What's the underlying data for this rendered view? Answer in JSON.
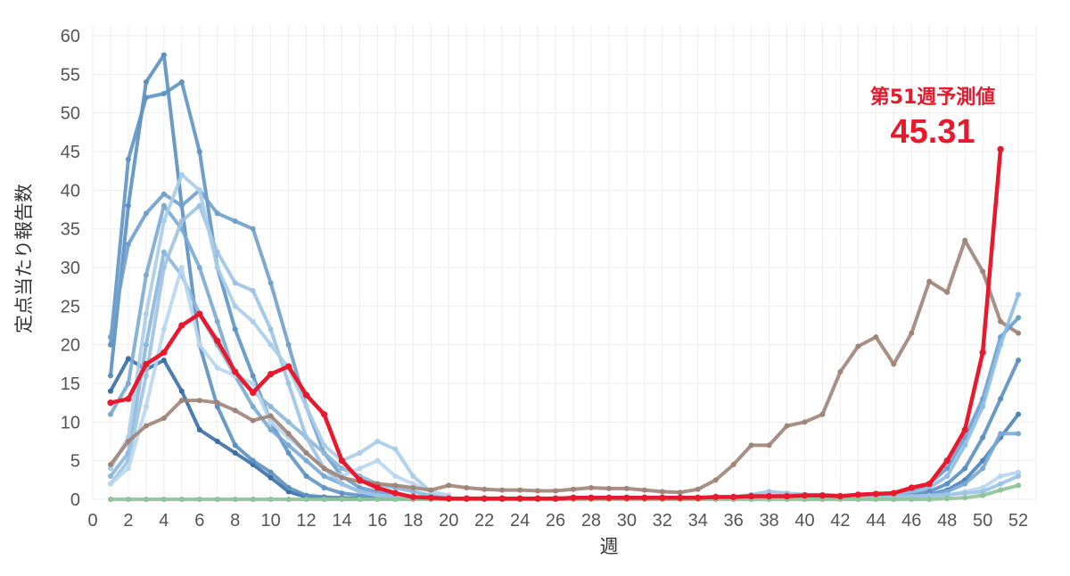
{
  "chart_data": {
    "type": "line",
    "title": "",
    "xlabel": "週",
    "ylabel": "定点当たり報告数",
    "xlim": [
      0,
      53
    ],
    "ylim": [
      0,
      60
    ],
    "xticks": [
      "0",
      "2",
      "4",
      "6",
      "8",
      "10",
      "12",
      "14",
      "16",
      "18",
      "20",
      "22",
      "24",
      "26",
      "28",
      "30",
      "32",
      "34",
      "36",
      "38",
      "40",
      "42",
      "44",
      "46",
      "48",
      "50",
      "52"
    ],
    "yticks": [
      "0",
      "5",
      "10",
      "15",
      "20",
      "25",
      "30",
      "35",
      "40",
      "45",
      "50",
      "55",
      "60"
    ],
    "grid": true,
    "legend": "none",
    "annotation": {
      "label": "第51週予測値",
      "value": "45.31",
      "color": "#e8192c",
      "x": 51,
      "y": 45.31
    },
    "series": [
      {
        "color": "#3a6fa5",
        "x": [
          1,
          2,
          3,
          4,
          5,
          6,
          7,
          8,
          9,
          10,
          11,
          12,
          13,
          14,
          15,
          16,
          17,
          18,
          19,
          20
        ],
        "y": [
          14,
          18.2,
          16.8,
          18,
          14,
          9,
          7.5,
          6,
          4.5,
          2.8,
          1,
          0.3,
          0.2,
          0.1,
          0.1,
          0.1,
          0.1,
          0.1,
          0.1,
          0.1
        ]
      },
      {
        "color": "#5b8fc0",
        "x": [
          1,
          2,
          3,
          4,
          5,
          6,
          7,
          8,
          9,
          10,
          11,
          12,
          13,
          14,
          15,
          16,
          17,
          18,
          19,
          20
        ],
        "y": [
          16,
          38,
          54,
          57.5,
          38,
          20,
          12,
          7,
          5,
          3.5,
          1.5,
          0.5,
          0.3,
          0.2,
          0.1,
          0.1,
          0.1,
          0.1,
          0.1,
          0.1
        ]
      },
      {
        "color": "#5e93c4",
        "x": [
          1,
          2,
          3,
          4,
          5,
          6,
          7,
          8,
          9,
          10,
          11,
          12,
          13,
          14,
          15,
          16,
          17,
          18,
          19,
          20
        ],
        "y": [
          20,
          44,
          52,
          52.5,
          54,
          45,
          30,
          22,
          16,
          10,
          6,
          3,
          1.5,
          0.8,
          0.5,
          0.3,
          0.2,
          0.1,
          0.1,
          0.1
        ]
      },
      {
        "color": "#6fa0cc",
        "x": [
          1,
          2,
          3,
          4,
          5,
          6,
          7,
          8,
          9,
          10,
          11,
          12,
          13,
          14,
          15,
          16,
          17,
          18,
          19,
          20
        ],
        "y": [
          21,
          33,
          37,
          39.5,
          38,
          40,
          37,
          36,
          35,
          28,
          20,
          12,
          6,
          3,
          1.5,
          1,
          0.5,
          0.3,
          0.2,
          0.1
        ]
      },
      {
        "color": "#7aaad3",
        "x": [
          1,
          2,
          3,
          4,
          5,
          6,
          7,
          8,
          9,
          10,
          11,
          12,
          13,
          14,
          15,
          16,
          17,
          18,
          19,
          20
        ],
        "y": [
          11,
          15,
          29,
          38,
          35,
          30,
          23,
          16,
          12,
          9,
          7,
          5,
          3,
          2,
          1,
          0.8,
          0.5,
          0.3,
          0.2,
          0.1
        ]
      },
      {
        "color": "#8cb7dc",
        "x": [
          1,
          2,
          3,
          4,
          5,
          6,
          7,
          8,
          9,
          10,
          11,
          12,
          13,
          14,
          15,
          16,
          17,
          18,
          19,
          20
        ],
        "y": [
          3,
          6,
          20,
          32,
          29,
          24,
          20,
          16,
          14,
          12,
          10,
          8,
          6,
          4,
          3,
          2,
          1.5,
          1,
          0.5,
          0.3
        ]
      },
      {
        "color": "#9cc3e4",
        "x": [
          1,
          2,
          3,
          4,
          5,
          6,
          7,
          8,
          9,
          10,
          11,
          12,
          13,
          14,
          15,
          16,
          17,
          18,
          19,
          20
        ],
        "y": [
          2,
          5,
          16,
          30,
          36,
          38,
          32,
          28,
          27,
          22,
          15,
          8,
          4,
          2,
          1,
          0.5,
          0.3,
          0.2,
          0.1,
          0.1
        ]
      },
      {
        "color": "#aacdea",
        "x": [
          1,
          2,
          3,
          4,
          5,
          6,
          7,
          8,
          9,
          10,
          11,
          12,
          13,
          14,
          15,
          16,
          17,
          18,
          19,
          20
        ],
        "y": [
          4,
          8,
          24,
          36,
          42,
          40,
          30,
          25,
          23,
          20,
          17,
          12,
          7,
          5,
          6,
          7.5,
          6.5,
          3,
          1,
          0.5
        ]
      },
      {
        "color": "#b8d6ef",
        "x": [
          1,
          2,
          3,
          4,
          5,
          6,
          7,
          8,
          9,
          10,
          11,
          12,
          13,
          14,
          15,
          16,
          17,
          18,
          19,
          20
        ],
        "y": [
          2,
          4,
          12,
          22,
          30,
          20,
          17,
          16,
          15,
          10,
          8,
          6,
          4,
          3,
          4,
          5,
          3,
          2,
          1,
          0.5
        ]
      },
      {
        "color": "#a08478",
        "x": [
          1,
          2,
          3,
          4,
          5,
          6,
          7,
          8,
          9,
          10,
          11,
          12,
          13,
          14,
          15,
          16,
          17,
          18,
          19,
          20,
          21,
          22,
          23,
          24,
          25,
          26,
          27,
          28,
          29,
          30,
          31,
          32,
          33,
          34,
          35,
          36,
          37,
          38,
          39,
          40,
          41,
          42,
          43,
          44,
          45,
          46,
          47,
          48,
          49,
          50,
          51,
          52
        ],
        "y": [
          4.5,
          7.5,
          9.5,
          10.5,
          12.8,
          12.8,
          12.5,
          11.5,
          10.2,
          10.8,
          8.5,
          6,
          4,
          2.8,
          2.3,
          2,
          1.8,
          1.5,
          1.2,
          1.8,
          1.5,
          1.3,
          1.2,
          1.2,
          1.1,
          1.1,
          1.3,
          1.5,
          1.4,
          1.4,
          1.2,
          1,
          0.9,
          1.3,
          2.5,
          4.5,
          7,
          7,
          9.5,
          10,
          11,
          16.5,
          19.8,
          21,
          17.5,
          21.5,
          28.2,
          26.8,
          33.5,
          29.5,
          23,
          21.5
        ]
      },
      {
        "color": "#6a9fd0",
        "x": [
          40,
          41,
          42,
          43,
          44,
          45,
          46,
          47,
          48,
          49,
          50,
          51,
          52
        ],
        "y": [
          0.2,
          0.2,
          0.3,
          0.3,
          0.4,
          0.5,
          1,
          2,
          4,
          8,
          13,
          21,
          23.5
        ]
      },
      {
        "color": "#8cbde5",
        "x": [
          40,
          41,
          42,
          43,
          44,
          45,
          46,
          47,
          48,
          49,
          50,
          51,
          52
        ],
        "y": [
          0.1,
          0.1,
          0.2,
          0.2,
          0.3,
          0.4,
          0.8,
          1.5,
          3,
          7,
          12,
          20,
          26.5
        ]
      },
      {
        "color": "#5b8fc0",
        "x": [
          40,
          41,
          42,
          43,
          44,
          45,
          46,
          47,
          48,
          49,
          50,
          51,
          52
        ],
        "y": [
          0.1,
          0.1,
          0.1,
          0.2,
          0.2,
          0.3,
          0.5,
          1,
          2,
          4,
          8,
          13,
          18
        ]
      },
      {
        "color": "#4a84bb",
        "x": [
          40,
          41,
          42,
          43,
          44,
          45,
          46,
          47,
          48,
          49,
          50,
          51,
          52
        ],
        "y": [
          0.1,
          0.1,
          0.1,
          0.1,
          0.2,
          0.2,
          0.3,
          0.6,
          1.2,
          2.5,
          5,
          8,
          11
        ]
      },
      {
        "color": "#7aaad3",
        "x": [
          40,
          41,
          42,
          43,
          44,
          45,
          46,
          47,
          48,
          49,
          50,
          51,
          52
        ],
        "y": [
          0.1,
          0.1,
          0.1,
          0.1,
          0.1,
          0.2,
          0.3,
          0.5,
          1,
          2,
          4,
          8.5,
          8.5
        ]
      },
      {
        "color": "#b8d6ef",
        "x": [
          40,
          41,
          42,
          43,
          44,
          45,
          46,
          47,
          48,
          49,
          50,
          51,
          52
        ],
        "y": [
          0.1,
          0.1,
          0.1,
          0.1,
          0.1,
          0.1,
          0.2,
          0.3,
          0.5,
          1,
          1.5,
          3,
          3.5
        ]
      },
      {
        "color": "#9cc3e4",
        "x": [
          36,
          37,
          38,
          39,
          40,
          41,
          42,
          43,
          44,
          45,
          46,
          47,
          48,
          49,
          50,
          51,
          52
        ],
        "y": [
          0.3,
          0.6,
          1,
          0.8,
          0.6,
          0.6,
          0.5,
          0.5,
          0.4,
          0.4,
          0.4,
          0.5,
          0.6,
          0.8,
          1,
          2,
          3
        ]
      },
      {
        "color": "#8fc39a",
        "x": [
          1,
          2,
          3,
          4,
          5,
          6,
          7,
          8,
          9,
          10,
          11,
          12,
          13,
          14,
          15,
          16,
          17,
          18,
          19,
          20,
          21,
          22,
          23,
          24,
          25,
          26,
          27,
          28,
          29,
          30,
          31,
          32,
          33,
          34,
          35,
          36,
          37,
          38,
          39,
          40,
          41,
          42,
          43,
          44,
          45,
          46,
          47,
          48,
          49,
          50,
          51,
          52
        ],
        "y": [
          0,
          0,
          0,
          0,
          0,
          0,
          0,
          0,
          0,
          0,
          0,
          0,
          0,
          0,
          0,
          0,
          0,
          0,
          0,
          0,
          0,
          0,
          0,
          0,
          0,
          0,
          0,
          0,
          0,
          0,
          0,
          0,
          0,
          0,
          0,
          0,
          0,
          0,
          0,
          0,
          0,
          0,
          0,
          0,
          0,
          0,
          0,
          0.1,
          0.2,
          0.5,
          1.2,
          1.8
        ]
      },
      {
        "color": "#e8192c",
        "x": [
          1,
          2,
          3,
          4,
          5,
          6,
          7,
          8,
          9,
          10,
          11,
          12,
          13,
          14,
          15,
          16,
          17,
          18,
          19,
          20,
          21,
          22,
          23,
          24,
          25,
          26,
          27,
          28,
          29,
          30,
          31,
          32,
          33,
          34,
          35,
          36,
          37,
          38,
          39,
          40,
          41,
          42,
          43,
          44,
          45,
          46,
          47,
          48,
          49,
          50,
          51
        ],
        "y": [
          12.5,
          13,
          17.5,
          19,
          22.5,
          24,
          20.5,
          16.5,
          13.8,
          16.2,
          17.2,
          13.5,
          11,
          5,
          2.5,
          1.5,
          0.8,
          0.3,
          0.2,
          0.1,
          0.1,
          0.1,
          0.1,
          0.1,
          0.1,
          0.1,
          0.2,
          0.2,
          0.2,
          0.2,
          0.2,
          0.2,
          0.2,
          0.2,
          0.3,
          0.3,
          0.4,
          0.4,
          0.4,
          0.5,
          0.5,
          0.4,
          0.6,
          0.7,
          0.8,
          1.5,
          2,
          5,
          9,
          19,
          45.31
        ]
      }
    ]
  }
}
